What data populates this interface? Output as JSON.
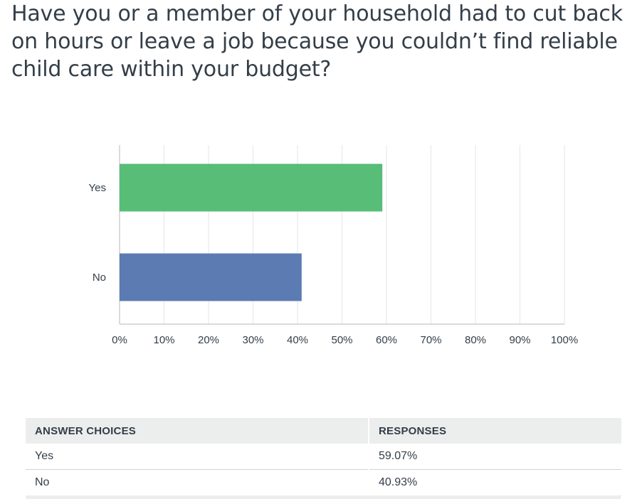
{
  "question": {
    "title": "Have you or a member of your household had to cut back on hours or leave a job because you couldn’t find reliable child care within your budget?"
  },
  "chart_data": {
    "type": "bar",
    "orientation": "horizontal",
    "title": "",
    "xlabel": "",
    "ylabel": "",
    "categories": [
      "Yes",
      "No"
    ],
    "values": [
      59.07,
      40.93
    ],
    "xlim": [
      0,
      100
    ],
    "xticks": [
      "0%",
      "10%",
      "20%",
      "30%",
      "40%",
      "50%",
      "60%",
      "70%",
      "80%",
      "90%",
      "100%"
    ],
    "grid": true,
    "colors": [
      "#57bd77",
      "#5b7bb2"
    ]
  },
  "table": {
    "headers": [
      "ANSWER CHOICES",
      "RESPONSES"
    ],
    "rows": [
      {
        "choice": "Yes",
        "response": "59.07%"
      },
      {
        "choice": "No",
        "response": "40.93%"
      }
    ]
  },
  "colors": {
    "text": "#333e48",
    "grid": "#e6e6e6",
    "axis": "#cfcfcf",
    "header_bg": "#eceeed"
  }
}
